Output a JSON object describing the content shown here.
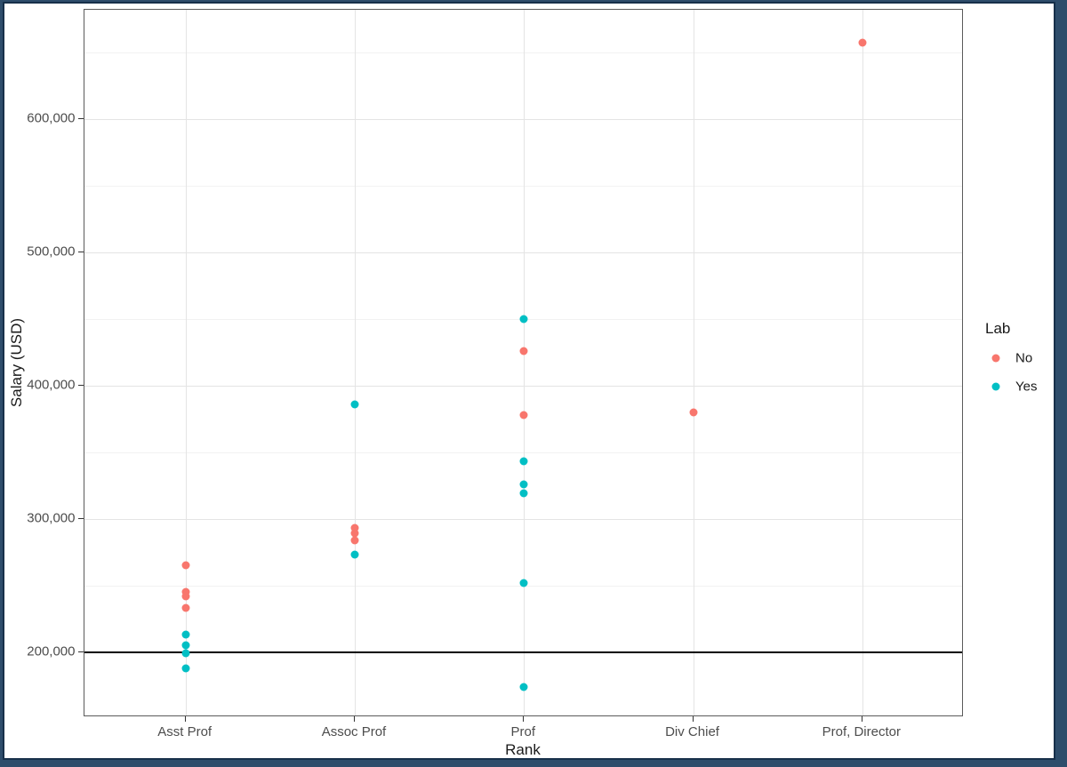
{
  "window": {
    "frame_color": "#2e4d6b",
    "frame_inner_line_color": "#17304a",
    "background": "#ffffff"
  },
  "chart_data": {
    "type": "scatter",
    "title": "",
    "xlabel": "Rank",
    "ylabel": "Salary (USD)",
    "categories": [
      "Asst Prof",
      "Assoc Prof",
      "Prof",
      "Div Chief",
      "Prof, Director"
    ],
    "y_axis": {
      "tick_values": [
        200000,
        300000,
        400000,
        500000,
        600000
      ],
      "tick_labels": [
        "200,000",
        "300,000",
        "400,000",
        "500,000",
        "600,000"
      ],
      "minor_gridline_values": [
        250000,
        350000,
        450000,
        550000,
        650000
      ],
      "range": [
        151000,
        681000
      ]
    },
    "reference_line": {
      "value": 200000,
      "color": "#000000"
    },
    "series": [
      {
        "name": "No",
        "color": "#F8766D",
        "points": [
          {
            "category": "Asst Prof",
            "value": 265000
          },
          {
            "category": "Asst Prof",
            "value": 245000
          },
          {
            "category": "Asst Prof",
            "value": 242000
          },
          {
            "category": "Asst Prof",
            "value": 233000
          },
          {
            "category": "Assoc Prof",
            "value": 293000
          },
          {
            "category": "Assoc Prof",
            "value": 289000
          },
          {
            "category": "Assoc Prof",
            "value": 284000
          },
          {
            "category": "Prof",
            "value": 426000
          },
          {
            "category": "Prof",
            "value": 378000
          },
          {
            "category": "Div Chief",
            "value": 380000
          },
          {
            "category": "Prof, Director",
            "value": 657000
          }
        ]
      },
      {
        "name": "Yes",
        "color": "#00BFC4",
        "points": [
          {
            "category": "Asst Prof",
            "value": 213000
          },
          {
            "category": "Asst Prof",
            "value": 205000
          },
          {
            "category": "Asst Prof",
            "value": 199000
          },
          {
            "category": "Asst Prof",
            "value": 188000
          },
          {
            "category": "Assoc Prof",
            "value": 386000
          },
          {
            "category": "Assoc Prof",
            "value": 273000
          },
          {
            "category": "Prof",
            "value": 450000
          },
          {
            "category": "Prof",
            "value": 343000
          },
          {
            "category": "Prof",
            "value": 326000
          },
          {
            "category": "Prof",
            "value": 319000
          },
          {
            "category": "Prof",
            "value": 252000
          },
          {
            "category": "Prof",
            "value": 174000
          }
        ]
      }
    ],
    "legend": {
      "title": "Lab",
      "position": "right",
      "entries": [
        "No",
        "Yes"
      ]
    }
  }
}
